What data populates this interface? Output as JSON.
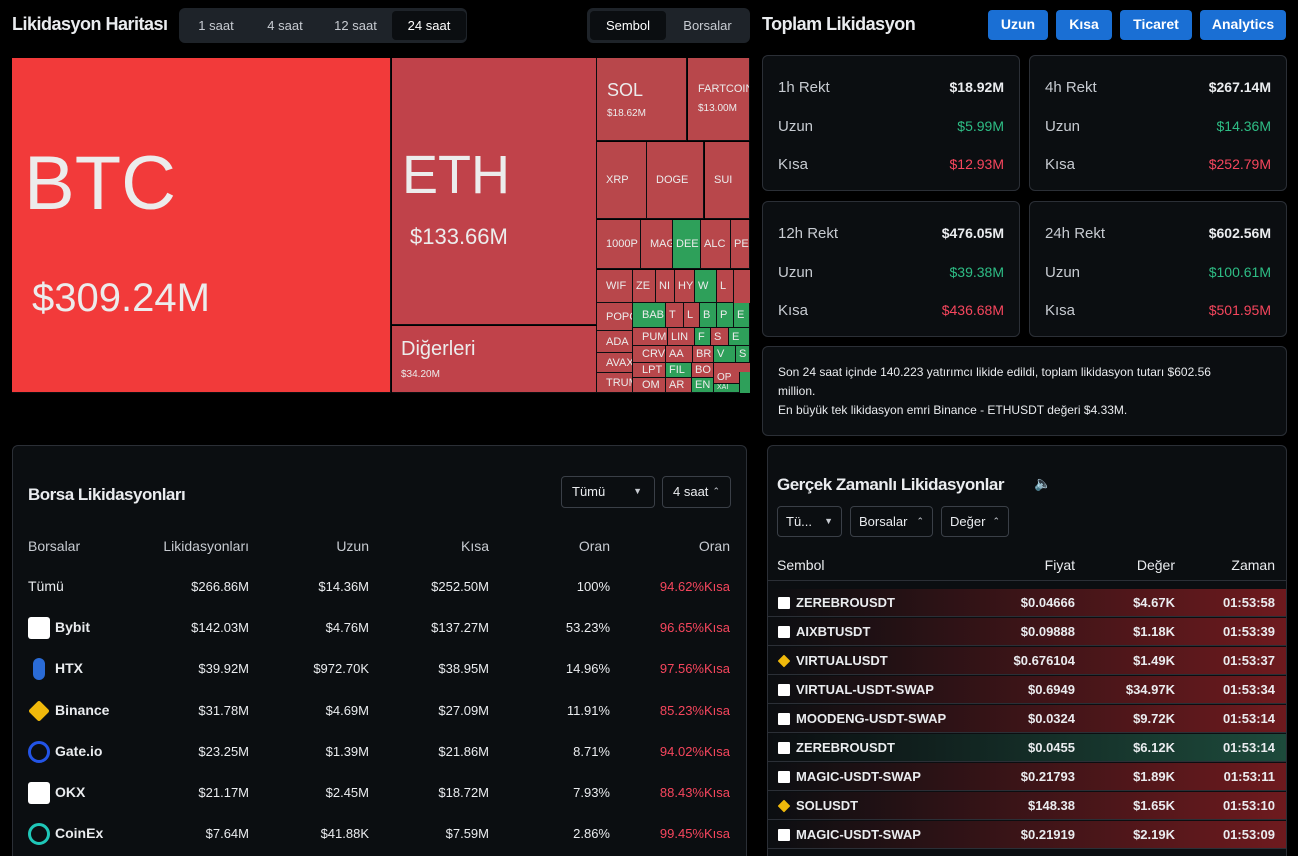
{
  "header": {
    "title": "Likidasyon Haritası",
    "time_tabs": [
      "1 saat",
      "4 saat",
      "12 saat",
      "24 saat"
    ],
    "active_time_tab": 3,
    "view_tabs": [
      "Sembol",
      "Borsalar"
    ],
    "active_view_tab": 0
  },
  "treemap": {
    "cells": [
      {
        "label": "BTC",
        "value": "$309.24M"
      },
      {
        "label": "ETH",
        "value": "$133.66M"
      },
      {
        "label": "Diğerleri",
        "value": "$34.20M"
      },
      {
        "label": "SOL",
        "value": "$18.62M"
      },
      {
        "label": "FARTCOIN",
        "value": "$13.00M"
      },
      {
        "label": "XRP"
      },
      {
        "label": "DOGE"
      },
      {
        "label": "SUI"
      },
      {
        "label": "1000P"
      },
      {
        "label": "MAGI"
      },
      {
        "label": "DEE"
      },
      {
        "label": "ALC"
      },
      {
        "label": "PE"
      },
      {
        "label": "WIF"
      },
      {
        "label": "ZE"
      },
      {
        "label": "NI"
      },
      {
        "label": "HY"
      },
      {
        "label": "W"
      },
      {
        "label": "L"
      },
      {
        "label": "POPC"
      },
      {
        "label": "BAB"
      },
      {
        "label": "T"
      },
      {
        "label": "L"
      },
      {
        "label": "B"
      },
      {
        "label": "P"
      },
      {
        "label": "E"
      },
      {
        "label": "ADA"
      },
      {
        "label": "PUM"
      },
      {
        "label": "LIN"
      },
      {
        "label": "F"
      },
      {
        "label": "S"
      },
      {
        "label": "E"
      },
      {
        "label": "AVAX"
      },
      {
        "label": "CRV"
      },
      {
        "label": "AA"
      },
      {
        "label": "BR"
      },
      {
        "label": "V"
      },
      {
        "label": "S"
      },
      {
        "label": "LPT"
      },
      {
        "label": "FIL"
      },
      {
        "label": "BO"
      },
      {
        "label": "TRUM"
      },
      {
        "label": "OM"
      },
      {
        "label": "AR"
      },
      {
        "label": "EN"
      },
      {
        "label": "OP"
      },
      {
        "label": "XAI"
      }
    ]
  },
  "summary": {
    "title": "Toplam Likidasyon",
    "buttons": [
      "Uzun",
      "Kısa",
      "Ticaret",
      "Analytics"
    ],
    "cards": [
      {
        "title": "1h Rekt",
        "total": "$18.92M",
        "long_label": "Uzun",
        "long": "$5.99M",
        "short_label": "Kısa",
        "short": "$12.93M"
      },
      {
        "title": "4h Rekt",
        "total": "$267.14M",
        "long_label": "Uzun",
        "long": "$14.36M",
        "short_label": "Kısa",
        "short": "$252.79M"
      },
      {
        "title": "12h Rekt",
        "total": "$476.05M",
        "long_label": "Uzun",
        "long": "$39.38M",
        "short_label": "Kısa",
        "short": "$436.68M"
      },
      {
        "title": "24h Rekt",
        "total": "$602.56M",
        "long_label": "Uzun",
        "long": "$100.61M",
        "short_label": "Kısa",
        "short": "$501.95M"
      }
    ],
    "note": [
      "Son 24 saat içinde 140.223 yatırımcı likide edildi, toplam likidasyon tutarı $602.56 million.",
      "En büyük tek likidasyon emri Binance - ETHUSDT değeri $4.33M."
    ]
  },
  "exchanges": {
    "title": "Borsa Likidasyonları",
    "filters": [
      "Tümü",
      "4 saat"
    ],
    "columns": [
      "Borsalar",
      "Likidasyonları",
      "Uzun",
      "Kısa",
      "Oran",
      "Oran"
    ],
    "rows": [
      [
        "Tümü",
        "$266.86M",
        "$14.36M",
        "$252.50M",
        "100%",
        "94.62%Kısa"
      ],
      [
        "Bybit",
        "$142.03M",
        "$4.76M",
        "$137.27M",
        "53.23%",
        "96.65%Kısa"
      ],
      [
        "HTX",
        "$39.92M",
        "$972.70K",
        "$38.95M",
        "14.96%",
        "97.56%Kısa"
      ],
      [
        "Binance",
        "$31.78M",
        "$4.69M",
        "$27.09M",
        "11.91%",
        "85.23%Kısa"
      ],
      [
        "Gate.io",
        "$23.25M",
        "$1.39M",
        "$21.86M",
        "8.71%",
        "94.02%Kısa"
      ],
      [
        "OKX",
        "$21.17M",
        "$2.45M",
        "$18.72M",
        "7.93%",
        "88.43%Kısa"
      ],
      [
        "CoinEx",
        "$7.64M",
        "$41.88K",
        "$7.59M",
        "2.86%",
        "99.45%Kısa"
      ]
    ]
  },
  "realtime": {
    "title": "Gerçek Zamanlı Likidasyonlar",
    "filters": [
      "Tü...",
      "Borsalar",
      "Değer"
    ],
    "columns": [
      "Sembol",
      "Fiyat",
      "Değer",
      "Zaman"
    ],
    "rows": [
      {
        "cells": [
          "ZEREBROUSDT",
          "$0.04666",
          "$4.67K",
          "01:53:58"
        ],
        "color": "#6e1a1e"
      },
      {
        "cells": [
          "AIXBTUSDT",
          "$0.09888",
          "$1.18K",
          "01:53:39"
        ],
        "color": "#6e1a1e"
      },
      {
        "cells": [
          "VIRTUALUSDT",
          "$0.676104",
          "$1.49K",
          "01:53:37"
        ],
        "color": "#6e1a1e"
      },
      {
        "cells": [
          "VIRTUAL-USDT-SWAP",
          "$0.6949",
          "$34.97K",
          "01:53:34"
        ],
        "color": "#6e1a1e"
      },
      {
        "cells": [
          "MOODENG-USDT-SWAP",
          "$0.0324",
          "$9.72K",
          "01:53:14"
        ],
        "color": "#6e1a1e"
      },
      {
        "cells": [
          "ZEREBROUSDT",
          "$0.0455",
          "$6.12K",
          "01:53:14"
        ],
        "color": "#1d4a3b"
      },
      {
        "cells": [
          "MAGIC-USDT-SWAP",
          "$0.21793",
          "$1.89K",
          "01:53:11"
        ],
        "color": "#6e1a1e"
      },
      {
        "cells": [
          "SOLUSDT",
          "$148.38",
          "$1.65K",
          "01:53:10"
        ],
        "color": "#6e1a1e"
      },
      {
        "cells": [
          "MAGIC-USDT-SWAP",
          "$0.21919",
          "$2.19K",
          "01:53:09"
        ],
        "color": "#6e1a1e"
      }
    ]
  }
}
